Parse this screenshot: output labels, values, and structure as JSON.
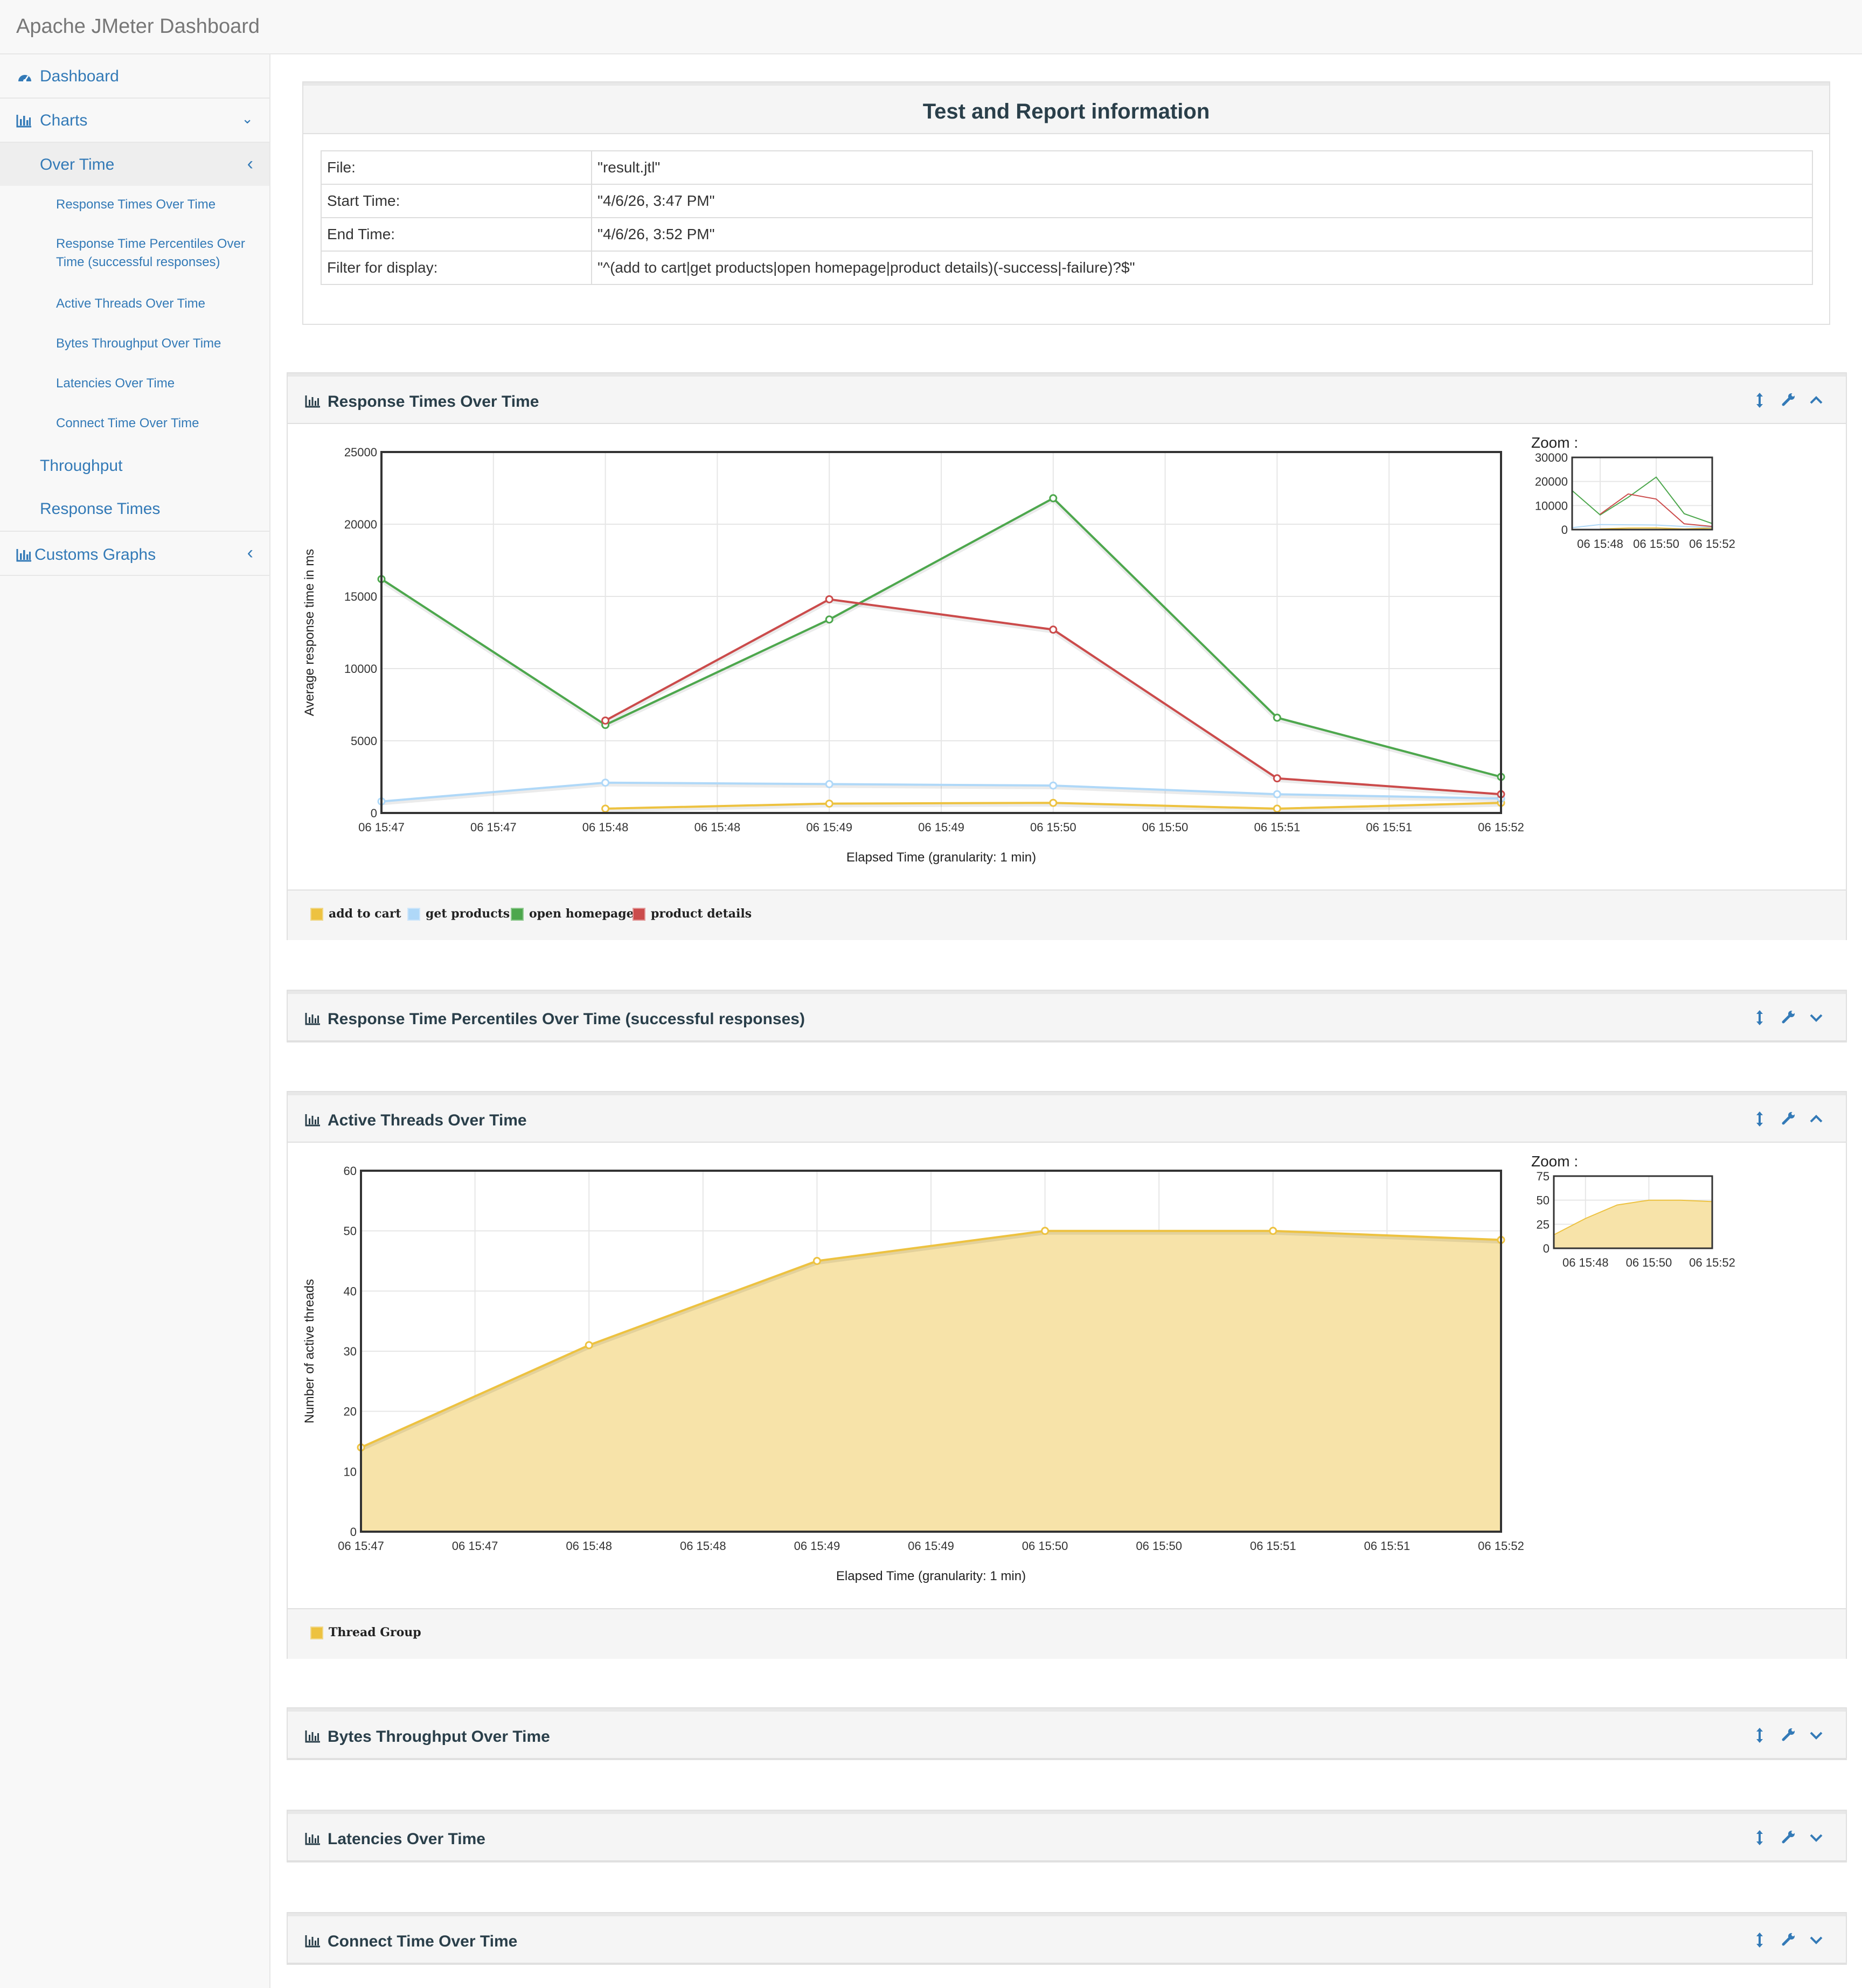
{
  "app": {
    "brand": "Apache JMeter Dashboard"
  },
  "sidebar": {
    "dashboard": "Dashboard",
    "charts": "Charts",
    "over_time": "Over Time",
    "over_time_items": [
      "Response Times Over Time",
      "Response Time Percentiles Over Time (successful responses)",
      "Active Threads Over Time",
      "Bytes Throughput Over Time",
      "Latencies Over Time",
      "Connect Time Over Time"
    ],
    "throughput": "Throughput",
    "response_times": "Response Times",
    "customs_graphs": "Customs Graphs"
  },
  "info": {
    "title": "Test and Report information",
    "rows": [
      {
        "key": "File:",
        "value": "\"result.jtl\""
      },
      {
        "key": "Start Time:",
        "value": "\"4/6/26, 3:47 PM\""
      },
      {
        "key": "End Time:",
        "value": "\"4/6/26, 3:52 PM\""
      },
      {
        "key": "Filter for display:",
        "value": "\"^(add to cart|get products|open homepage|product details)(-success|-failure)?$\""
      }
    ]
  },
  "panels": {
    "response_times": {
      "title": "Response Times Over Time",
      "zoom_label": "Zoom :"
    },
    "percentiles": {
      "title": "Response Time Percentiles Over Time (successful responses)"
    },
    "active_threads": {
      "title": "Active Threads Over Time",
      "zoom_label": "Zoom :"
    },
    "bytes": {
      "title": "Bytes Throughput Over Time"
    },
    "latencies": {
      "title": "Latencies Over Time"
    },
    "connect": {
      "title": "Connect Time Over Time"
    }
  },
  "chart_data": [
    {
      "type": "line",
      "title": "Response Times Over Time",
      "xlabel": "Elapsed Time (granularity: 1 min)",
      "ylabel": "Average response time in ms",
      "x_tick_labels": [
        "06 15:47",
        "06 15:47",
        "06 15:48",
        "06 15:48",
        "06 15:49",
        "06 15:49",
        "06 15:50",
        "06 15:50",
        "06 15:51",
        "06 15:51",
        "06 15:52"
      ],
      "y_ticks": [
        0,
        5000,
        10000,
        15000,
        20000,
        25000
      ],
      "ylim": [
        0,
        25000
      ],
      "x": [
        "15:47",
        "15:48",
        "15:49",
        "15:50",
        "15:51",
        "15:52"
      ],
      "series": [
        {
          "name": "add to cart",
          "color": "#edc240",
          "values": [
            null,
            300,
            650,
            700,
            300,
            700
          ]
        },
        {
          "name": "get products",
          "color": "#afd8f8",
          "values": [
            800,
            2100,
            2000,
            1900,
            1300,
            1000
          ]
        },
        {
          "name": "open homepage",
          "color": "#4da74d",
          "values": [
            16200,
            6100,
            13400,
            21800,
            6600,
            2500
          ]
        },
        {
          "name": "product details",
          "color": "#cb4b4b",
          "values": [
            null,
            6400,
            14800,
            12700,
            2400,
            1300
          ]
        }
      ],
      "legend": "bottom",
      "grid": true,
      "zoom": {
        "y_ticks": [
          0,
          10000,
          20000,
          30000
        ],
        "x_tick_labels": [
          "06 15:48",
          "06 15:50",
          "06 15:52"
        ]
      }
    },
    {
      "type": "area",
      "title": "Active Threads Over Time",
      "xlabel": "Elapsed Time (granularity: 1 min)",
      "ylabel": "Number of active threads",
      "x_tick_labels": [
        "06 15:47",
        "06 15:47",
        "06 15:48",
        "06 15:48",
        "06 15:49",
        "06 15:49",
        "06 15:50",
        "06 15:50",
        "06 15:51",
        "06 15:51",
        "06 15:52"
      ],
      "y_ticks": [
        0,
        10,
        20,
        30,
        40,
        50,
        60
      ],
      "ylim": [
        0,
        60
      ],
      "x": [
        "15:47",
        "15:48",
        "15:49",
        "15:50",
        "15:51",
        "15:52"
      ],
      "series": [
        {
          "name": "Thread Group",
          "color": "#edc240",
          "values": [
            14,
            31,
            45,
            50,
            50,
            48.5
          ]
        }
      ],
      "legend": "bottom",
      "grid": true,
      "zoom": {
        "y_ticks": [
          0,
          25,
          50,
          75
        ],
        "x_tick_labels": [
          "06 15:48",
          "06 15:50",
          "06 15:52"
        ]
      }
    }
  ]
}
